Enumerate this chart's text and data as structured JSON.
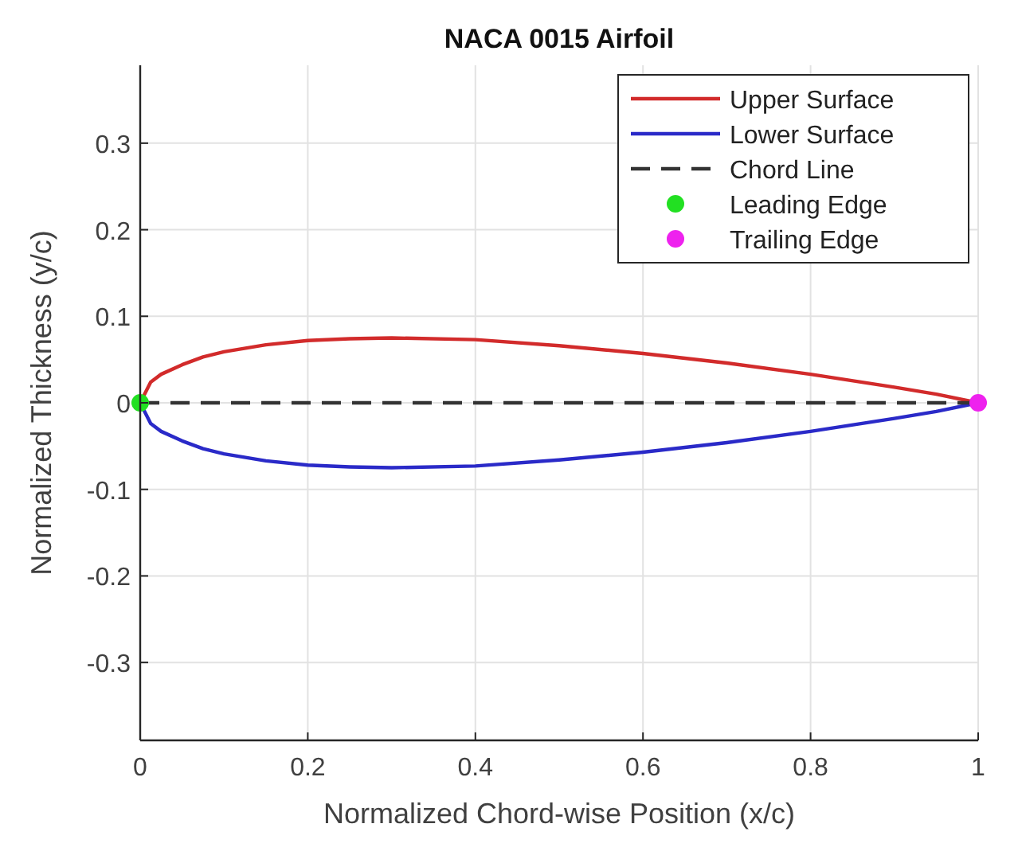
{
  "chart_data": {
    "type": "line",
    "title": "NACA 0015 Airfoil",
    "xlabel": "Normalized Chord-wise Position (x/c)",
    "ylabel": "Normalized Thickness (y/c)",
    "xlim": [
      0,
      1
    ],
    "ylim": [
      -0.39,
      0.39
    ],
    "xticks": [
      0,
      0.2,
      0.4,
      0.6,
      0.8,
      1
    ],
    "yticks": [
      -0.3,
      -0.2,
      -0.1,
      0,
      0.1,
      0.2,
      0.3
    ],
    "grid": true,
    "legend": "top right",
    "series": [
      {
        "name": "Upper Surface",
        "color": "#d22b2b",
        "line_style": "solid",
        "x": [
          0,
          0.0125,
          0.025,
          0.05,
          0.075,
          0.1,
          0.15,
          0.2,
          0.25,
          0.3,
          0.4,
          0.5,
          0.6,
          0.7,
          0.8,
          0.9,
          0.95,
          1
        ],
        "values": [
          0,
          0.024,
          0.033,
          0.044,
          0.053,
          0.059,
          0.067,
          0.072,
          0.074,
          0.075,
          0.073,
          0.066,
          0.057,
          0.046,
          0.033,
          0.018,
          0.01,
          0
        ]
      },
      {
        "name": "Lower Surface",
        "color": "#2a2ac8",
        "line_style": "solid",
        "x": [
          0,
          0.0125,
          0.025,
          0.05,
          0.075,
          0.1,
          0.15,
          0.2,
          0.25,
          0.3,
          0.4,
          0.5,
          0.6,
          0.7,
          0.8,
          0.9,
          0.95,
          1
        ],
        "values": [
          0,
          -0.024,
          -0.033,
          -0.044,
          -0.053,
          -0.059,
          -0.067,
          -0.072,
          -0.074,
          -0.075,
          -0.073,
          -0.066,
          -0.057,
          -0.046,
          -0.033,
          -0.018,
          -0.01,
          0
        ]
      },
      {
        "name": "Chord Line",
        "color": "#333333",
        "line_style": "dashed",
        "x": [
          0,
          1
        ],
        "values": [
          0,
          0
        ]
      },
      {
        "name": "Leading Edge",
        "type": "scatter",
        "marker": "circle",
        "color": "#22e022",
        "x": [
          0
        ],
        "values": [
          0
        ]
      },
      {
        "name": "Trailing Edge",
        "type": "scatter",
        "marker": "circle",
        "color": "#ee22ee",
        "x": [
          1
        ],
        "values": [
          0
        ]
      }
    ]
  }
}
